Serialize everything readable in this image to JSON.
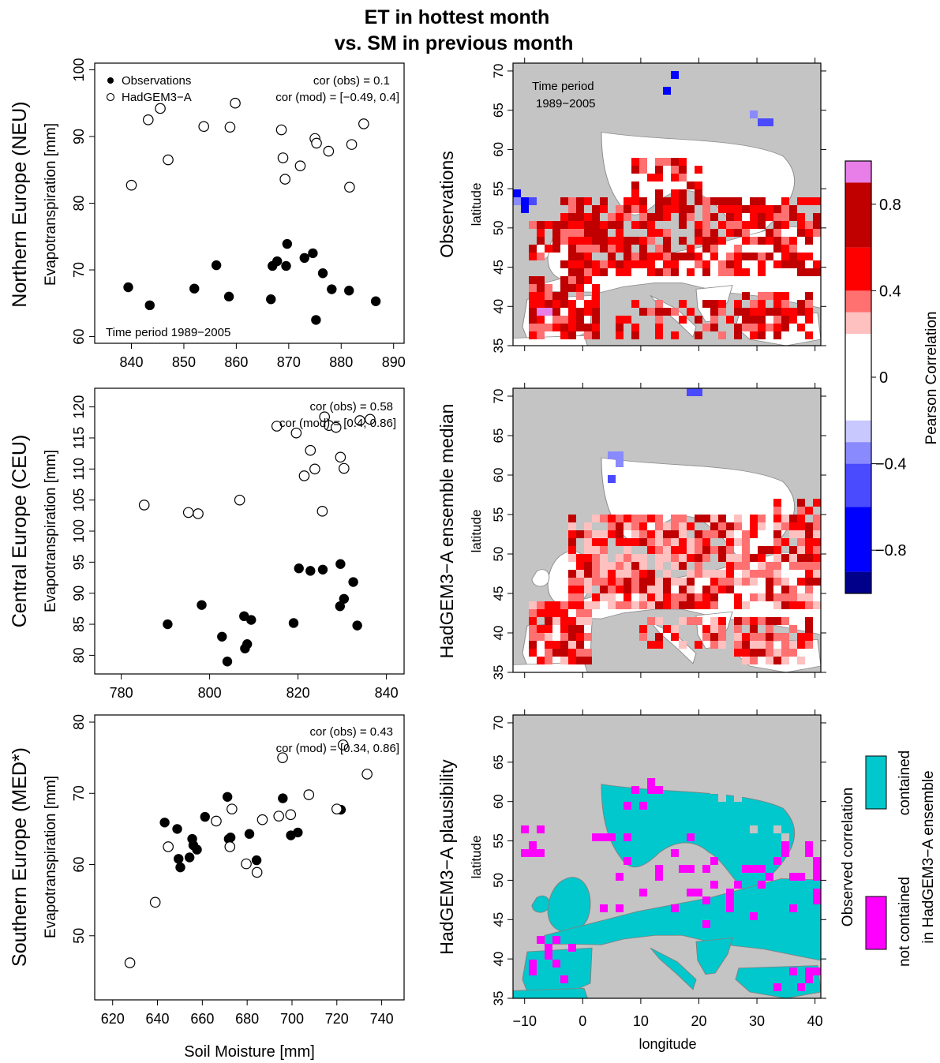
{
  "title": {
    "line1": "ET in hottest month",
    "line2": "vs. SM in previous month"
  },
  "colors": {
    "open_marker": "#ffffff",
    "filled_marker": "#000000",
    "ocean": "#c4c4c4",
    "land_white": "#ffffff",
    "cyan": "#00c8cc",
    "magenta": "#ff00ff",
    "colorscale": [
      "#00008b",
      "#0000ff",
      "#4a4aff",
      "#8a8aff",
      "#c8c8ff",
      "#ffffff",
      "#ffc0c0",
      "#ff7070",
      "#ff0000",
      "#c00000",
      "#e87ee8"
    ]
  },
  "colorbar": {
    "title": "Pearson Correlation",
    "tick_labels": [
      "0.8",
      "0.4",
      "0",
      "−0.4",
      "−0.8"
    ],
    "tick_values": [
      0.8,
      0.4,
      0,
      -0.4,
      -0.8
    ],
    "range": [
      -1,
      1
    ]
  },
  "plausibility_legend": {
    "title": "Observed correlation",
    "contained": {
      "line1": "contained",
      "line2": "in HadGEM3−A ensemble"
    },
    "not_contained": {
      "line1": "not contained"
    }
  },
  "maps": {
    "xlabel": "longitude",
    "ylabel": "latitude",
    "xlim": [
      -12,
      41
    ],
    "ylim": [
      35,
      71
    ],
    "x_ticks": [
      -10,
      0,
      10,
      20,
      30,
      40
    ],
    "y_ticks": [
      35,
      40,
      45,
      50,
      55,
      60,
      65,
      70
    ],
    "panels": [
      {
        "row_label": "Observations",
        "note": {
          "line1": "Time period",
          "line2": "1989−2005"
        }
      },
      {
        "row_label": "HadGEM3−A ensemble median"
      },
      {
        "row_label": "HadGEM3−A plausibility"
      }
    ]
  },
  "chart_data": [
    {
      "type": "scatter",
      "row_label": "Northern Europe (NEU)",
      "ylabel": "Evapotranspiration [mm]",
      "xlim": [
        833,
        892
      ],
      "ylim": [
        59,
        101
      ],
      "x_ticks": [
        840,
        850,
        860,
        870,
        880,
        890
      ],
      "y_ticks": [
        60,
        70,
        80,
        90,
        100
      ],
      "legend": {
        "observations": "Observations",
        "model": "HadGEM3−A"
      },
      "cor_obs": "cor (obs) = 0.1",
      "cor_mod": "cor (mod) = [−0.49, 0.4]",
      "note": "Time period 1989−2005",
      "series": [
        {
          "name": "Observations",
          "marker": "filled",
          "points": [
            [
              839.4,
              67.4
            ],
            [
              843.5,
              64.7
            ],
            [
              852.0,
              67.2
            ],
            [
              856.2,
              70.7
            ],
            [
              858.6,
              66.0
            ],
            [
              866.6,
              65.6
            ],
            [
              866.9,
              70.6
            ],
            [
              867.8,
              71.3
            ],
            [
              869.5,
              70.6
            ],
            [
              869.7,
              73.9
            ],
            [
              873.0,
              71.8
            ],
            [
              874.6,
              72.5
            ],
            [
              875.2,
              62.5
            ],
            [
              876.5,
              69.5
            ],
            [
              878.2,
              67.1
            ],
            [
              881.5,
              66.9
            ],
            [
              886.6,
              65.3
            ]
          ]
        },
        {
          "name": "HadGEM3−A",
          "marker": "open",
          "points": [
            [
              840.0,
              82.7
            ],
            [
              843.2,
              92.5
            ],
            [
              845.5,
              94.2
            ],
            [
              847.0,
              86.5
            ],
            [
              853.8,
              91.5
            ],
            [
              858.8,
              91.4
            ],
            [
              859.8,
              95.0
            ],
            [
              868.6,
              91.0
            ],
            [
              868.9,
              86.8
            ],
            [
              869.3,
              83.6
            ],
            [
              872.2,
              85.6
            ],
            [
              875.0,
              89.7
            ],
            [
              875.3,
              89.0
            ],
            [
              877.6,
              87.8
            ],
            [
              881.6,
              82.4
            ],
            [
              882.0,
              88.8
            ],
            [
              884.3,
              91.9
            ]
          ]
        }
      ]
    },
    {
      "type": "scatter",
      "row_label": "Central Europe (CEU)",
      "ylabel": "Evapotranspiration [mm]",
      "xlim": [
        774,
        844
      ],
      "ylim": [
        77,
        123
      ],
      "x_ticks": [
        780,
        800,
        820,
        840
      ],
      "y_ticks": [
        80,
        85,
        90,
        95,
        100,
        105,
        110,
        115,
        120
      ],
      "cor_obs": "cor (obs) = 0.58",
      "cor_mod": "cor (mod) = [0.4, 0.86]",
      "series": [
        {
          "name": "Observations",
          "marker": "filled",
          "points": [
            [
              790.5,
              85.0
            ],
            [
              798.2,
              88.1
            ],
            [
              802.8,
              83.0
            ],
            [
              804.0,
              79.0
            ],
            [
              807.8,
              86.3
            ],
            [
              808.0,
              81.1
            ],
            [
              808.5,
              81.8
            ],
            [
              809.4,
              85.7
            ],
            [
              819.0,
              85.2
            ],
            [
              820.2,
              94.0
            ],
            [
              822.8,
              93.6
            ],
            [
              825.6,
              93.8
            ],
            [
              829.6,
              94.7
            ],
            [
              829.5,
              87.9
            ],
            [
              830.4,
              89.1
            ],
            [
              832.5,
              91.8
            ],
            [
              833.4,
              84.8
            ]
          ]
        },
        {
          "name": "HadGEM3−A",
          "marker": "open",
          "points": [
            [
              785.2,
              104.2
            ],
            [
              795.2,
              103.0
            ],
            [
              797.4,
              102.8
            ],
            [
              806.8,
              105.0
            ],
            [
              815.2,
              116.9
            ],
            [
              819.6,
              115.8
            ],
            [
              821.4,
              108.9
            ],
            [
              822.8,
              113.0
            ],
            [
              823.8,
              110.0
            ],
            [
              825.5,
              103.2
            ],
            [
              826.0,
              118.4
            ],
            [
              827.0,
              117.0
            ],
            [
              828.6,
              116.7
            ],
            [
              829.6,
              111.9
            ],
            [
              830.4,
              110.1
            ],
            [
              834.0,
              117.8
            ],
            [
              836.3,
              118.0
            ]
          ]
        }
      ]
    },
    {
      "type": "scatter",
      "row_label": "Southern Europe (MED*)",
      "ylabel": "Evapotranspiration [mm]",
      "xlabel": "Soil Moisture [mm]",
      "xlim": [
        612,
        750
      ],
      "ylim": [
        41,
        81
      ],
      "x_ticks": [
        620,
        640,
        660,
        680,
        700,
        720,
        740
      ],
      "y_ticks": [
        50,
        60,
        70,
        80
      ],
      "cor_obs": "cor (obs) = 0.43",
      "cor_mod": "cor (mod) = [0.34, 0.86]",
      "series": [
        {
          "name": "Observations",
          "marker": "filled",
          "points": [
            [
              643.2,
              65.9
            ],
            [
              648.8,
              65.0
            ],
            [
              649.4,
              60.8
            ],
            [
              650.2,
              59.6
            ],
            [
              654.3,
              61.0
            ],
            [
              655.5,
              63.6
            ],
            [
              656.0,
              62.7
            ],
            [
              657.6,
              62.1
            ],
            [
              661.2,
              66.7
            ],
            [
              671.2,
              69.5
            ],
            [
              671.8,
              63.6
            ],
            [
              672.6,
              63.8
            ],
            [
              681.0,
              64.3
            ],
            [
              684.2,
              60.6
            ],
            [
              695.9,
              69.3
            ],
            [
              699.5,
              64.1
            ],
            [
              702.6,
              64.5
            ],
            [
              721.8,
              67.7
            ]
          ]
        },
        {
          "name": "HadGEM3−A",
          "marker": "open",
          "points": [
            [
              627.7,
              46.2
            ],
            [
              639.0,
              54.7
            ],
            [
              644.8,
              62.5
            ],
            [
              666.2,
              66.1
            ],
            [
              672.3,
              62.5
            ],
            [
              673.2,
              67.8
            ],
            [
              679.6,
              60.1
            ],
            [
              684.4,
              58.9
            ],
            [
              686.8,
              66.3
            ],
            [
              694.1,
              66.8
            ],
            [
              695.8,
              75.0
            ],
            [
              699.4,
              67.0
            ],
            [
              707.5,
              69.8
            ],
            [
              720.0,
              67.8
            ],
            [
              722.8,
              76.8
            ],
            [
              733.5,
              72.7
            ]
          ]
        }
      ]
    }
  ]
}
